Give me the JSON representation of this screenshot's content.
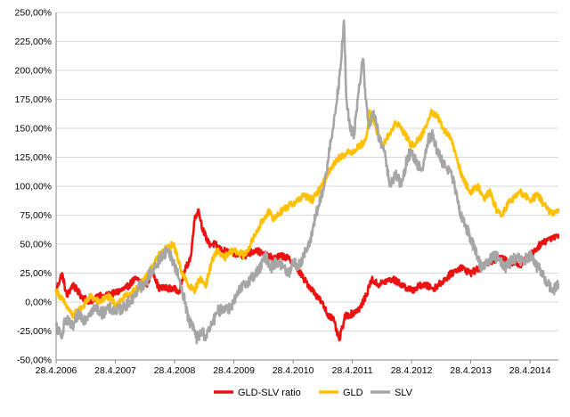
{
  "chart_data": {
    "type": "line",
    "title": "",
    "xlabel": "",
    "ylabel": "",
    "x_tick_labels": [
      "28.4.2006",
      "28.4.2007",
      "28.4.2008",
      "28.4.2009",
      "28.4.2010",
      "28.4.2011",
      "28.4.2012",
      "28.4.2013",
      "28.4.2014"
    ],
    "y_tick_labels": [
      "-50,00%",
      "-25,00%",
      "0,00%",
      "25,00%",
      "50,00%",
      "75,00%",
      "100,00%",
      "125,00%",
      "150,00%",
      "175,00%",
      "200,00%",
      "225,00%",
      "250,00%"
    ],
    "ylim": [
      -50,
      250
    ],
    "xlim": [
      2006.32,
      2014.8
    ],
    "x_unit": "year (fractional)",
    "y_unit": "percent",
    "grid": "horizontal",
    "legend_position": "bottom",
    "series": [
      {
        "name": "GLD-SLV ratio",
        "color": "#ee1111",
        "points": [
          [
            2006.32,
            10
          ],
          [
            2006.42,
            25
          ],
          [
            2006.5,
            5
          ],
          [
            2006.6,
            15
          ],
          [
            2006.75,
            5
          ],
          [
            2006.9,
            0
          ],
          [
            2007.0,
            5
          ],
          [
            2007.15,
            5
          ],
          [
            2007.32,
            8
          ],
          [
            2007.5,
            12
          ],
          [
            2007.65,
            20
          ],
          [
            2007.75,
            18
          ],
          [
            2007.85,
            15
          ],
          [
            2007.95,
            28
          ],
          [
            2008.05,
            12
          ],
          [
            2008.25,
            12
          ],
          [
            2008.4,
            10
          ],
          [
            2008.5,
            28
          ],
          [
            2008.6,
            40
          ],
          [
            2008.65,
            70
          ],
          [
            2008.72,
            80
          ],
          [
            2008.8,
            62
          ],
          [
            2008.9,
            50
          ],
          [
            2009.0,
            50
          ],
          [
            2009.1,
            45
          ],
          [
            2009.3,
            42
          ],
          [
            2009.5,
            40
          ],
          [
            2009.7,
            45
          ],
          [
            2009.85,
            40
          ],
          [
            2010.0,
            38
          ],
          [
            2010.15,
            40
          ],
          [
            2010.32,
            35
          ],
          [
            2010.5,
            20
          ],
          [
            2010.65,
            10
          ],
          [
            2010.8,
            0
          ],
          [
            2010.9,
            -10
          ],
          [
            2011.0,
            -15
          ],
          [
            2011.1,
            -33
          ],
          [
            2011.2,
            -12
          ],
          [
            2011.32,
            -10
          ],
          [
            2011.45,
            -5
          ],
          [
            2011.55,
            5
          ],
          [
            2011.65,
            20
          ],
          [
            2011.75,
            15
          ],
          [
            2011.9,
            18
          ],
          [
            2012.0,
            20
          ],
          [
            2012.15,
            15
          ],
          [
            2012.32,
            10
          ],
          [
            2012.5,
            15
          ],
          [
            2012.7,
            12
          ],
          [
            2012.85,
            18
          ],
          [
            2013.0,
            25
          ],
          [
            2013.15,
            30
          ],
          [
            2013.32,
            25
          ],
          [
            2013.5,
            30
          ],
          [
            2013.65,
            35
          ],
          [
            2013.8,
            38
          ],
          [
            2014.0,
            35
          ],
          [
            2014.15,
            32
          ],
          [
            2014.32,
            40
          ],
          [
            2014.5,
            50
          ],
          [
            2014.65,
            55
          ],
          [
            2014.8,
            58
          ]
        ]
      },
      {
        "name": "GLD",
        "color": "#ffc000",
        "points": [
          [
            2006.32,
            10
          ],
          [
            2006.45,
            0
          ],
          [
            2006.6,
            -12
          ],
          [
            2006.75,
            -5
          ],
          [
            2006.9,
            5
          ],
          [
            2007.05,
            0
          ],
          [
            2007.2,
            5
          ],
          [
            2007.32,
            -2
          ],
          [
            2007.5,
            5
          ],
          [
            2007.65,
            10
          ],
          [
            2007.75,
            15
          ],
          [
            2007.85,
            25
          ],
          [
            2007.95,
            30
          ],
          [
            2008.05,
            40
          ],
          [
            2008.15,
            45
          ],
          [
            2008.3,
            50
          ],
          [
            2008.45,
            25
          ],
          [
            2008.55,
            15
          ],
          [
            2008.65,
            10
          ],
          [
            2008.75,
            20
          ],
          [
            2008.85,
            15
          ],
          [
            2008.95,
            35
          ],
          [
            2009.05,
            45
          ],
          [
            2009.15,
            38
          ],
          [
            2009.32,
            45
          ],
          [
            2009.5,
            40
          ],
          [
            2009.65,
            55
          ],
          [
            2009.8,
            70
          ],
          [
            2009.9,
            78
          ],
          [
            2010.0,
            72
          ],
          [
            2010.15,
            80
          ],
          [
            2010.32,
            85
          ],
          [
            2010.5,
            92
          ],
          [
            2010.65,
            88
          ],
          [
            2010.8,
            100
          ],
          [
            2010.95,
            115
          ],
          [
            2011.1,
            125
          ],
          [
            2011.2,
            128
          ],
          [
            2011.32,
            130
          ],
          [
            2011.45,
            135
          ],
          [
            2011.55,
            140
          ],
          [
            2011.62,
            165
          ],
          [
            2011.72,
            150
          ],
          [
            2011.82,
            135
          ],
          [
            2011.95,
            145
          ],
          [
            2012.05,
            155
          ],
          [
            2012.15,
            150
          ],
          [
            2012.32,
            135
          ],
          [
            2012.45,
            140
          ],
          [
            2012.55,
            150
          ],
          [
            2012.65,
            165
          ],
          [
            2012.75,
            160
          ],
          [
            2012.85,
            150
          ],
          [
            2013.0,
            140
          ],
          [
            2013.1,
            120
          ],
          [
            2013.2,
            105
          ],
          [
            2013.32,
            95
          ],
          [
            2013.45,
            100
          ],
          [
            2013.55,
            90
          ],
          [
            2013.65,
            95
          ],
          [
            2013.75,
            80
          ],
          [
            2013.85,
            75
          ],
          [
            2013.95,
            85
          ],
          [
            2014.05,
            90
          ],
          [
            2014.15,
            95
          ],
          [
            2014.32,
            88
          ],
          [
            2014.45,
            92
          ],
          [
            2014.55,
            85
          ],
          [
            2014.65,
            78
          ],
          [
            2014.72,
            75
          ],
          [
            2014.8,
            80
          ]
        ]
      },
      {
        "name": "SLV",
        "color": "#a6a6a6",
        "points": [
          [
            2006.32,
            -20
          ],
          [
            2006.4,
            -30
          ],
          [
            2006.48,
            -15
          ],
          [
            2006.6,
            -22
          ],
          [
            2006.7,
            -10
          ],
          [
            2006.8,
            -15
          ],
          [
            2006.9,
            -8
          ],
          [
            2007.0,
            -5
          ],
          [
            2007.1,
            -10
          ],
          [
            2007.2,
            -5
          ],
          [
            2007.32,
            -8
          ],
          [
            2007.45,
            -5
          ],
          [
            2007.55,
            0
          ],
          [
            2007.65,
            5
          ],
          [
            2007.72,
            15
          ],
          [
            2007.8,
            12
          ],
          [
            2007.9,
            25
          ],
          [
            2008.0,
            30
          ],
          [
            2008.1,
            40
          ],
          [
            2008.2,
            45
          ],
          [
            2008.3,
            35
          ],
          [
            2008.4,
            20
          ],
          [
            2008.5,
            0
          ],
          [
            2008.55,
            -15
          ],
          [
            2008.62,
            -20
          ],
          [
            2008.7,
            -32
          ],
          [
            2008.78,
            -25
          ],
          [
            2008.85,
            -30
          ],
          [
            2008.95,
            -20
          ],
          [
            2009.05,
            -8
          ],
          [
            2009.15,
            -5
          ],
          [
            2009.25,
            -5
          ],
          [
            2009.32,
            0
          ],
          [
            2009.42,
            10
          ],
          [
            2009.5,
            15
          ],
          [
            2009.6,
            20
          ],
          [
            2009.7,
            25
          ],
          [
            2009.78,
            30
          ],
          [
            2009.85,
            40
          ],
          [
            2009.95,
            30
          ],
          [
            2010.05,
            35
          ],
          [
            2010.15,
            30
          ],
          [
            2010.25,
            25
          ],
          [
            2010.32,
            35
          ],
          [
            2010.4,
            30
          ],
          [
            2010.5,
            40
          ],
          [
            2010.6,
            50
          ],
          [
            2010.7,
            75
          ],
          [
            2010.8,
            90
          ],
          [
            2010.88,
            110
          ],
          [
            2010.95,
            140
          ],
          [
            2011.0,
            150
          ],
          [
            2011.05,
            170
          ],
          [
            2011.12,
            200
          ],
          [
            2011.18,
            243
          ],
          [
            2011.22,
            175
          ],
          [
            2011.28,
            150
          ],
          [
            2011.35,
            145
          ],
          [
            2011.42,
            180
          ],
          [
            2011.5,
            210
          ],
          [
            2011.55,
            175
          ],
          [
            2011.6,
            150
          ],
          [
            2011.68,
            165
          ],
          [
            2011.78,
            140
          ],
          [
            2011.88,
            125
          ],
          [
            2011.95,
            100
          ],
          [
            2012.05,
            110
          ],
          [
            2012.15,
            100
          ],
          [
            2012.25,
            125
          ],
          [
            2012.32,
            130
          ],
          [
            2012.4,
            120
          ],
          [
            2012.5,
            115
          ],
          [
            2012.6,
            140
          ],
          [
            2012.68,
            145
          ],
          [
            2012.75,
            130
          ],
          [
            2012.85,
            120
          ],
          [
            2012.95,
            115
          ],
          [
            2013.05,
            100
          ],
          [
            2013.12,
            80
          ],
          [
            2013.2,
            70
          ],
          [
            2013.32,
            55
          ],
          [
            2013.42,
            40
          ],
          [
            2013.5,
            30
          ],
          [
            2013.6,
            35
          ],
          [
            2013.7,
            40
          ],
          [
            2013.8,
            38
          ],
          [
            2013.9,
            30
          ],
          [
            2014.0,
            35
          ],
          [
            2014.1,
            40
          ],
          [
            2014.2,
            35
          ],
          [
            2014.32,
            40
          ],
          [
            2014.45,
            30
          ],
          [
            2014.55,
            22
          ],
          [
            2014.62,
            15
          ],
          [
            2014.7,
            10
          ],
          [
            2014.8,
            15
          ]
        ]
      }
    ]
  }
}
